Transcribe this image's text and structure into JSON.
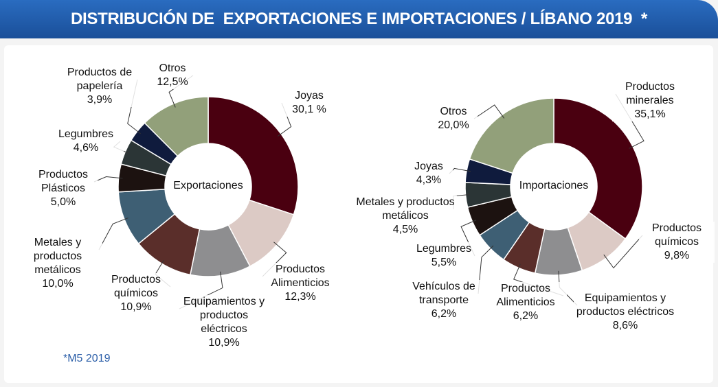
{
  "title": "DISTRIBUCIÓN DE  EXPORTACIONES E IMPORTACIONES / LÍBANO 2019  *",
  "footnote": "*M5 2019",
  "chart_data": [
    {
      "type": "pie",
      "center_label": "Exportaciones",
      "categories": [
        "Joyas",
        "Productos Alimenticios",
        "Equipamientos y productos eléctricos",
        "Productos químicos",
        "Metales y productos metálicos",
        "Productos Plásticos",
        "Legumbres",
        "Productos de papelería",
        "Otros"
      ],
      "values": [
        30.1,
        12.3,
        10.9,
        10.9,
        10.0,
        5.0,
        4.6,
        3.9,
        12.5
      ],
      "value_labels": [
        "30,1 %",
        "12,3%",
        "10,9%",
        "10,9%",
        "10,0%",
        "5,0%",
        "4,6%",
        "3,9%",
        "12,5%"
      ],
      "colors": [
        "#4a0010",
        "#dccac5",
        "#8e8e90",
        "#5a2e2a",
        "#3e5f74",
        "#1c1210",
        "#2b3536",
        "#0f1b3d",
        "#92a07a"
      ]
    },
    {
      "type": "pie",
      "center_label": "Importaciones",
      "categories": [
        "Productos minerales",
        "Productos químicos",
        "Equipamientos y productos eléctricos",
        "Productos Alimenticios",
        "Vehículos de transporte",
        "Legumbres",
        "Metales y productos metálicos",
        "Joyas",
        "Otros"
      ],
      "values": [
        35.1,
        9.8,
        8.6,
        6.2,
        6.2,
        5.5,
        4.5,
        4.3,
        20.0
      ],
      "value_labels": [
        "35,1%",
        "9,8%",
        "8,6%",
        "6,2%",
        "6,2%",
        "5,5%",
        "4,5%",
        "4,3%",
        "20,0%"
      ],
      "colors": [
        "#4a0010",
        "#dccac5",
        "#8e8e90",
        "#5a2e2a",
        "#3e5f74",
        "#1c1210",
        "#2b3536",
        "#0f1b3d",
        "#92a07a"
      ]
    }
  ]
}
